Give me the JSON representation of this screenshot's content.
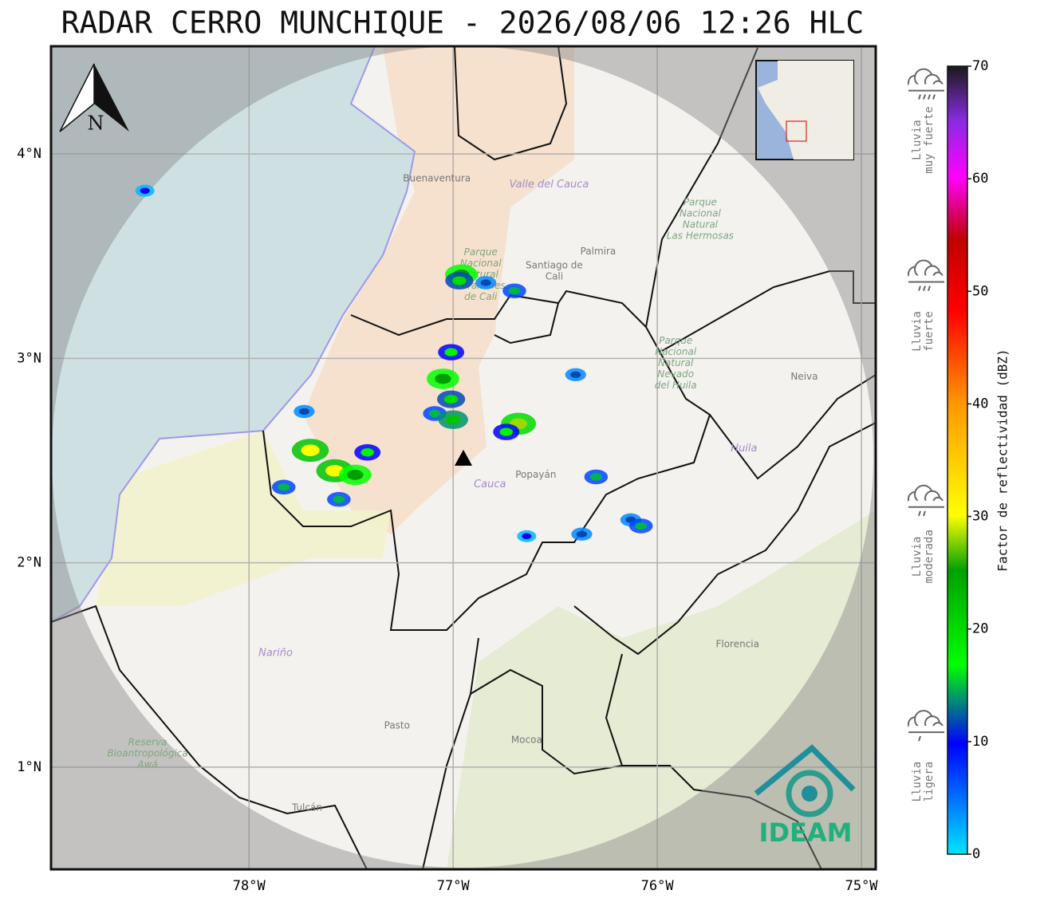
{
  "title": "RADAR CERRO MUNCHIQUE - 2026/08/06 12:26 HLC",
  "north_label": "N",
  "logo_text": "IDEAM",
  "map": {
    "xlim": [
      -78.97,
      -74.93
    ],
    "ylim": [
      0.5,
      4.527
    ],
    "lon_ticks": [
      {
        "value": -78,
        "label": "78°W"
      },
      {
        "value": -77,
        "label": "77°W"
      },
      {
        "value": -76,
        "label": "76°W"
      },
      {
        "value": -75,
        "label": "75°W"
      }
    ],
    "lat_ticks": [
      {
        "value": 4,
        "label": "4°N"
      },
      {
        "value": 3,
        "label": "3°N"
      },
      {
        "value": 2,
        "label": "2°N"
      },
      {
        "value": 1,
        "label": "1°N"
      }
    ],
    "radar_site": {
      "lon": -76.95,
      "lat": 2.51
    },
    "departments": [
      {
        "lines": [
          "Valle del Cauca"
        ],
        "lon": -76.53,
        "lat": 3.85
      },
      {
        "lines": [
          "Huila"
        ],
        "lon": -75.575,
        "lat": 2.558
      },
      {
        "lines": [
          "Cauca"
        ],
        "lon": -76.82,
        "lat": 2.383
      },
      {
        "lines": [
          "Nariño"
        ],
        "lon": -77.87,
        "lat": 1.558
      }
    ],
    "cities": [
      {
        "lines": [
          "Buenaventura"
        ],
        "lon": -77.08,
        "lat": 3.88
      },
      {
        "lines": [
          "Santiago de",
          "Cali"
        ],
        "lon": -76.505,
        "lat": 3.426
      },
      {
        "lines": [
          "Palmira"
        ],
        "lon": -76.29,
        "lat": 3.523
      },
      {
        "lines": [
          "Neiva"
        ],
        "lon": -75.28,
        "lat": 2.91
      },
      {
        "lines": [
          "Popayán"
        ],
        "lon": -76.595,
        "lat": 2.43
      },
      {
        "lines": [
          "Pasto"
        ],
        "lon": -77.275,
        "lat": 1.203
      },
      {
        "lines": [
          "Mocoa"
        ],
        "lon": -76.64,
        "lat": 1.132
      },
      {
        "lines": [
          "Florencia"
        ],
        "lon": -75.607,
        "lat": 1.601
      },
      {
        "lines": [
          "Tulcán"
        ],
        "lon": -77.716,
        "lat": 0.8
      }
    ],
    "parks": [
      {
        "lines": [
          "Parque",
          "Nacional",
          "Natural",
          "Farallones",
          "de Cali"
        ],
        "lon": -76.865,
        "lat": 3.41
      },
      {
        "lines": [
          "Parque",
          "Nacional",
          "Natural",
          "Las Hermosas"
        ],
        "lon": -75.79,
        "lat": 3.68
      },
      {
        "lines": [
          "Parque",
          "Nacional",
          "Natural",
          "Nevado",
          "del Huila"
        ],
        "lon": -75.91,
        "lat": 2.976
      },
      {
        "lines": [
          "Reserva",
          "Bioantropológica",
          "Awá"
        ],
        "lon": -78.497,
        "lat": 1.066
      }
    ],
    "echoes": [
      {
        "lon": -76.96,
        "lat": 3.41,
        "dbz": 25
      },
      {
        "lon": -76.97,
        "lat": 3.38,
        "dbz": 20
      },
      {
        "lon": -76.84,
        "lat": 3.37,
        "dbz": 12
      },
      {
        "lon": -76.7,
        "lat": 3.33,
        "dbz": 15
      },
      {
        "lon": -77.01,
        "lat": 3.03,
        "dbz": 18
      },
      {
        "lon": -77.05,
        "lat": 2.9,
        "dbz": 25
      },
      {
        "lon": -77.01,
        "lat": 2.8,
        "dbz": 20
      },
      {
        "lon": -77.09,
        "lat": 2.73,
        "dbz": 15
      },
      {
        "lon": -77.0,
        "lat": 2.7,
        "dbz": 22
      },
      {
        "lon": -76.68,
        "lat": 2.68,
        "dbz": 28
      },
      {
        "lon": -76.74,
        "lat": 2.64,
        "dbz": 18
      },
      {
        "lon": -77.7,
        "lat": 2.55,
        "dbz": 30
      },
      {
        "lon": -77.58,
        "lat": 2.45,
        "dbz": 30
      },
      {
        "lon": -77.48,
        "lat": 2.43,
        "dbz": 25
      },
      {
        "lon": -77.42,
        "lat": 2.54,
        "dbz": 18
      },
      {
        "lon": -77.83,
        "lat": 2.37,
        "dbz": 15
      },
      {
        "lon": -77.56,
        "lat": 2.31,
        "dbz": 15
      },
      {
        "lon": -76.3,
        "lat": 2.42,
        "dbz": 15
      },
      {
        "lon": -76.13,
        "lat": 2.21,
        "dbz": 12
      },
      {
        "lon": -76.08,
        "lat": 2.18,
        "dbz": 15
      },
      {
        "lon": -76.37,
        "lat": 2.14,
        "dbz": 12
      },
      {
        "lon": -76.64,
        "lat": 2.13,
        "dbz": 10
      },
      {
        "lon": -77.73,
        "lat": 2.74,
        "dbz": 12
      },
      {
        "lon": -78.51,
        "lat": 3.82,
        "dbz": 10
      },
      {
        "lon": -76.4,
        "lat": 2.92,
        "dbz": 12
      }
    ]
  },
  "colorbar": {
    "label": "Factor de reflectividad (dBZ)",
    "lim": [
      0,
      70
    ],
    "ticks": [
      0,
      10,
      20,
      30,
      40,
      50,
      60,
      70
    ]
  },
  "legend": [
    {
      "lines": [
        "Lluvia",
        "muy fuerte"
      ],
      "dbz": 65
    },
    {
      "lines": [
        "Lluvia",
        "fuerte"
      ],
      "dbz": 48
    },
    {
      "lines": [
        "Lluvia",
        "moderada"
      ],
      "dbz": 28
    },
    {
      "lines": [
        "Lluvia",
        "ligera"
      ],
      "dbz": 8
    }
  ]
}
